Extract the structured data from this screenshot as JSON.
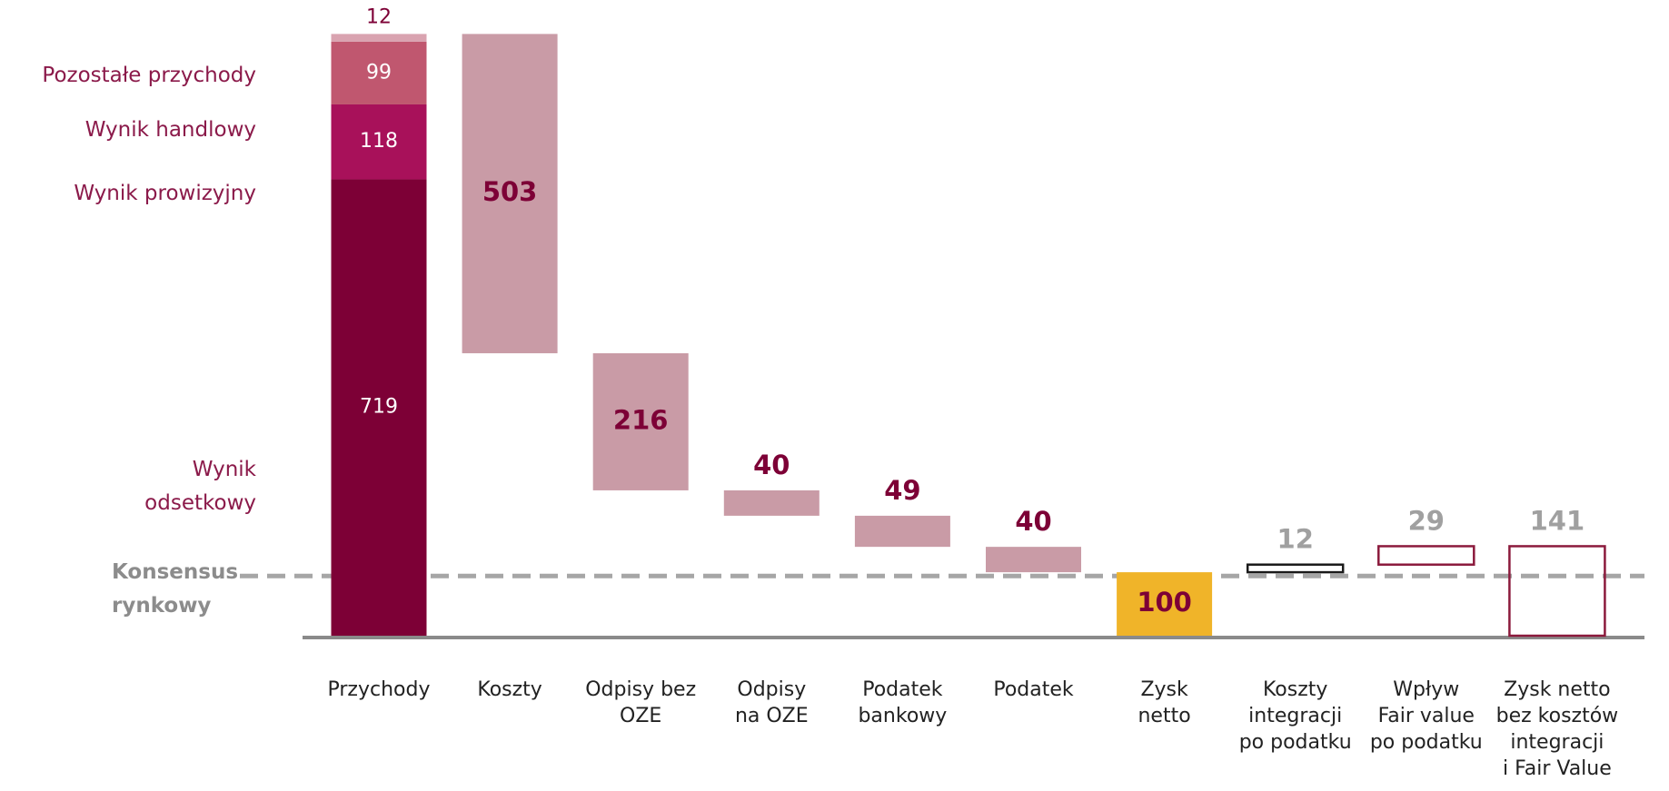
{
  "chart_data": {
    "type": "waterfall",
    "categories": [
      "Przychody",
      "Koszty",
      "Odpisy bez\nOZE",
      "Odpisy\nna OZE",
      "Podatek\nbankowy",
      "Podatek",
      "Zysk\nnetto",
      "Koszty\nintegracji\npo podatku",
      "Wpływ\nFair value\npo podatku",
      "Zysk netto\nbez kosztów\nintegracji\ni Fair Value"
    ],
    "series": [
      {
        "name": "Wynik\nodsetkowy",
        "color": "#7d0036",
        "values": [
          719,
          null,
          null,
          null,
          null,
          null,
          null,
          null,
          null,
          null
        ]
      },
      {
        "name": "Wynik prowizyjny",
        "color": "#a8115a",
        "values": [
          118,
          null,
          null,
          null,
          null,
          null,
          null,
          null,
          null,
          null
        ]
      },
      {
        "name": "Wynik handlowy",
        "color": "#c0576f",
        "values": [
          99,
          null,
          null,
          null,
          null,
          null,
          null,
          null,
          null,
          null
        ]
      },
      {
        "name": "Pozostałe przychody",
        "color": "#d9a3b0",
        "values": [
          12,
          null,
          null,
          null,
          null,
          null,
          null,
          null,
          null,
          null
        ]
      }
    ],
    "values": [
      null,
      503,
      216,
      40,
      49,
      40,
      100,
      12,
      29,
      141
    ],
    "kinds": [
      "stack",
      "down",
      "down",
      "down",
      "down",
      "down",
      "total",
      "up",
      "up",
      "total"
    ],
    "colors": [
      null,
      "#c99ba6",
      "#c99ba6",
      "#c99ba6",
      "#c99ba6",
      "#c99ba6",
      "#f0b429",
      "#1a1a1a",
      "#8b1a3c",
      "#8b1a3c"
    ],
    "outlined": [
      false,
      false,
      false,
      false,
      false,
      false,
      false,
      true,
      true,
      true
    ],
    "consensus": {
      "label": "Konsensus\nrynkowy",
      "value": 94
    },
    "ylim": [
      0,
      950
    ]
  }
}
